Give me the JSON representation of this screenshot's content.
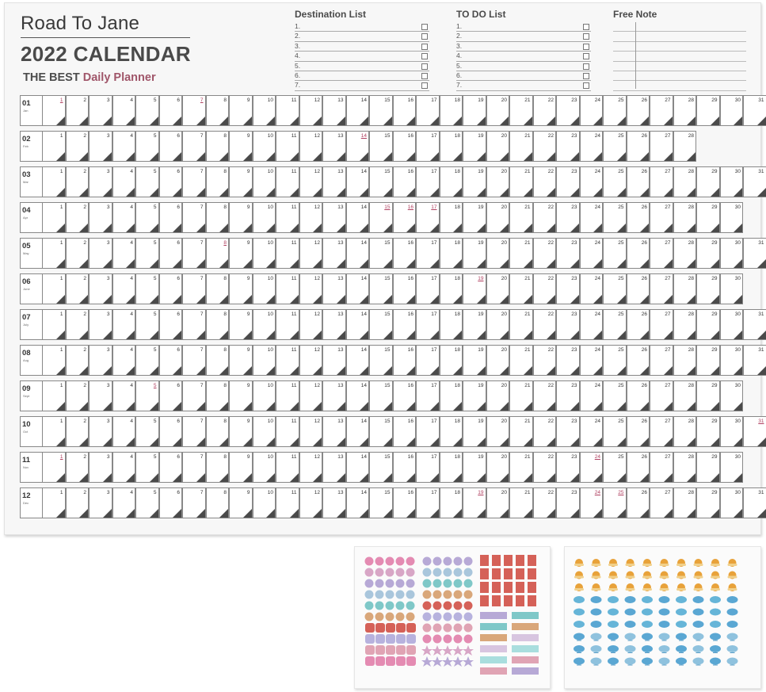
{
  "header": {
    "title": "Road To Jane",
    "year_line": "2022 CALENDAR",
    "tagline_prefix": "THE BEST",
    "tagline_accent": "Daily Planner"
  },
  "destination_list": {
    "title": "Destination List",
    "items": [
      "1.",
      "2.",
      "3.",
      "4.",
      "5.",
      "6.",
      "7."
    ]
  },
  "todo_list": {
    "title": "TO DO List",
    "items": [
      "1.",
      "2.",
      "3.",
      "4.",
      "5.",
      "6.",
      "7."
    ]
  },
  "free_note": {
    "title": "Free Note"
  },
  "calendar": {
    "months": [
      {
        "num": "01",
        "abbr": "Jan",
        "days": 31,
        "highlight": [
          1,
          7
        ]
      },
      {
        "num": "02",
        "abbr": "Feb",
        "days": 28,
        "highlight": [
          14
        ]
      },
      {
        "num": "03",
        "abbr": "Mar",
        "days": 31,
        "highlight": []
      },
      {
        "num": "04",
        "abbr": "Apr",
        "days": 30,
        "highlight": [
          15,
          16,
          17
        ]
      },
      {
        "num": "05",
        "abbr": "May",
        "days": 31,
        "highlight": [
          8
        ]
      },
      {
        "num": "06",
        "abbr": "June",
        "days": 30,
        "highlight": [
          19
        ]
      },
      {
        "num": "07",
        "abbr": "July",
        "days": 31,
        "highlight": []
      },
      {
        "num": "08",
        "abbr": "Aug",
        "days": 31,
        "highlight": []
      },
      {
        "num": "09",
        "abbr": "Sept",
        "days": 30,
        "highlight": [
          5
        ]
      },
      {
        "num": "10",
        "abbr": "Oct",
        "days": 31,
        "highlight": [
          31
        ]
      },
      {
        "num": "11",
        "abbr": "Nov",
        "days": 30,
        "highlight": [
          1,
          24
        ]
      },
      {
        "num": "12",
        "abbr": "Dec",
        "days": 31,
        "highlight": [
          19,
          24,
          25
        ]
      }
    ]
  },
  "sticker_sheets": [
    {
      "name": "color-shapes",
      "colors": [
        "#e48bb2",
        "#d8a6c6",
        "#b7a9d6",
        "#a9c6dc",
        "#7fc8c8",
        "#d9a77a",
        "#d56158",
        "#b7b2de",
        "#e0a4b4"
      ]
    },
    {
      "name": "weather",
      "icons": [
        "partly-sunny",
        "sunny",
        "cloudy",
        "rainy",
        "stormy",
        "snowy",
        "moon"
      ],
      "colors": [
        "#e8a23a",
        "#e39a2e",
        "#66b5d8",
        "#5aa7d3",
        "#8fc2de",
        "#a8c9e4",
        "#c49530"
      ]
    }
  ]
}
